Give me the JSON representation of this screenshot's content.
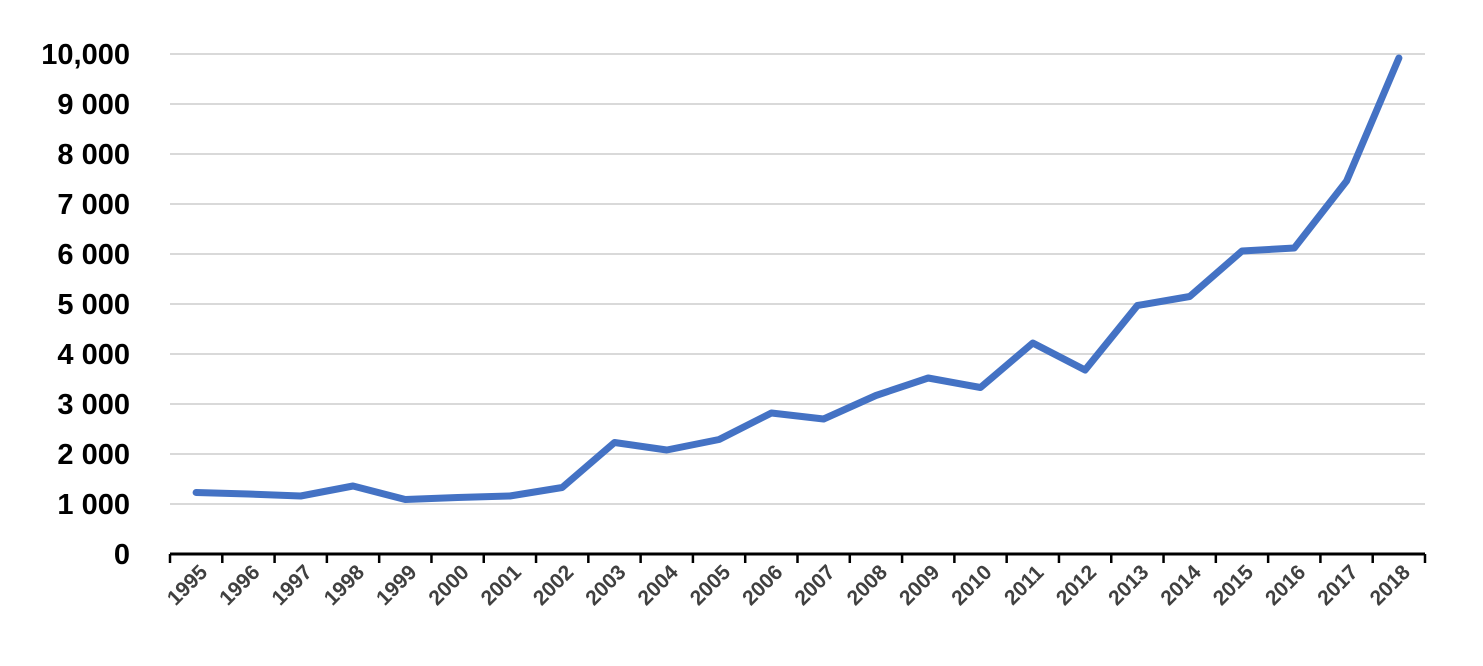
{
  "chart_data": {
    "type": "line",
    "title": "",
    "xlabel": "",
    "ylabel": "",
    "x": [
      "1995",
      "1996",
      "1997",
      "1998",
      "1999",
      "2000",
      "2001",
      "2002",
      "2003",
      "2004",
      "2005",
      "2006",
      "2007",
      "2008",
      "2009",
      "2010",
      "2011",
      "2012",
      "2013",
      "2014",
      "2015",
      "2016",
      "2017",
      "2018"
    ],
    "series": [
      {
        "values": [
          1230,
          1200,
          1160,
          1360,
          1090,
          1130,
          1160,
          1330,
          2230,
          2080,
          2290,
          2820,
          2700,
          3170,
          3520,
          3330,
          4220,
          3680,
          4970,
          5150,
          6060,
          6120,
          7460,
          9920
        ],
        "color": "#4472c4"
      }
    ],
    "ylim": [
      0,
      10000
    ],
    "yticks": [
      0,
      1000,
      2000,
      3000,
      4000,
      5000,
      6000,
      7000,
      8000,
      9000,
      10000
    ],
    "ytick_labels": [
      "0",
      "1 000",
      "2 000",
      "3 000",
      "4 000",
      "5 000",
      "6 000",
      "7 000",
      "8 000",
      "9 000",
      "10,000"
    ],
    "grid": true,
    "legend": "none"
  }
}
